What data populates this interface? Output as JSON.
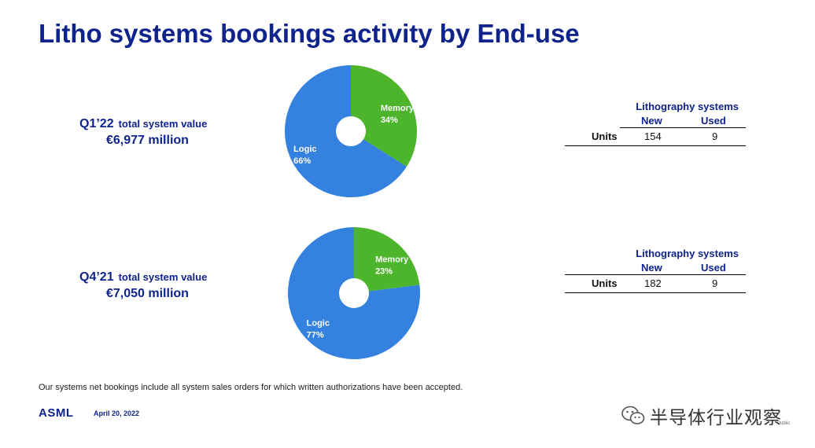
{
  "title": "Litho systems bookings activity by End-use",
  "panels": [
    {
      "quarter": "Q1’22",
      "metric_label": "total system value",
      "metric_value": "€6,977 million",
      "table": {
        "heading": "Lithography systems",
        "col_new": "New",
        "col_used": "Used",
        "row_label": "Units",
        "new_value": "154",
        "used_value": "9"
      },
      "slices": [
        {
          "name": "Memory",
          "pct_label": "34%"
        },
        {
          "name": "Logic",
          "pct_label": "66%"
        }
      ]
    },
    {
      "quarter": "Q4’21",
      "metric_label": "total system value",
      "metric_value": "€7,050 million",
      "table": {
        "heading": "Lithography systems",
        "col_new": "New",
        "col_used": "Used",
        "row_label": "Units",
        "new_value": "182",
        "used_value": "9"
      },
      "slices": [
        {
          "name": "Memory",
          "pct_label": "23%"
        },
        {
          "name": "Logic",
          "pct_label": "77%"
        }
      ]
    }
  ],
  "chart_data": [
    {
      "type": "pie",
      "title": "",
      "categories": [
        "Memory",
        "Logic"
      ],
      "values": [
        34,
        66
      ],
      "colors": [
        "#4cb52b",
        "#3481e0"
      ],
      "donut": true
    },
    {
      "type": "pie",
      "title": "",
      "categories": [
        "Memory",
        "Logic"
      ],
      "values": [
        23,
        77
      ],
      "colors": [
        "#4cb52b",
        "#3481e0"
      ],
      "donut": true
    }
  ],
  "footnote": "Our systems net bookings include all system sales orders for which written authorizations have been accepted.",
  "footer": {
    "logo_text": "ASML",
    "date": "April 20, 2022",
    "classification": "Public"
  },
  "watermark": {
    "text": "半导体行业观察",
    "icon": "wechat-icon"
  }
}
